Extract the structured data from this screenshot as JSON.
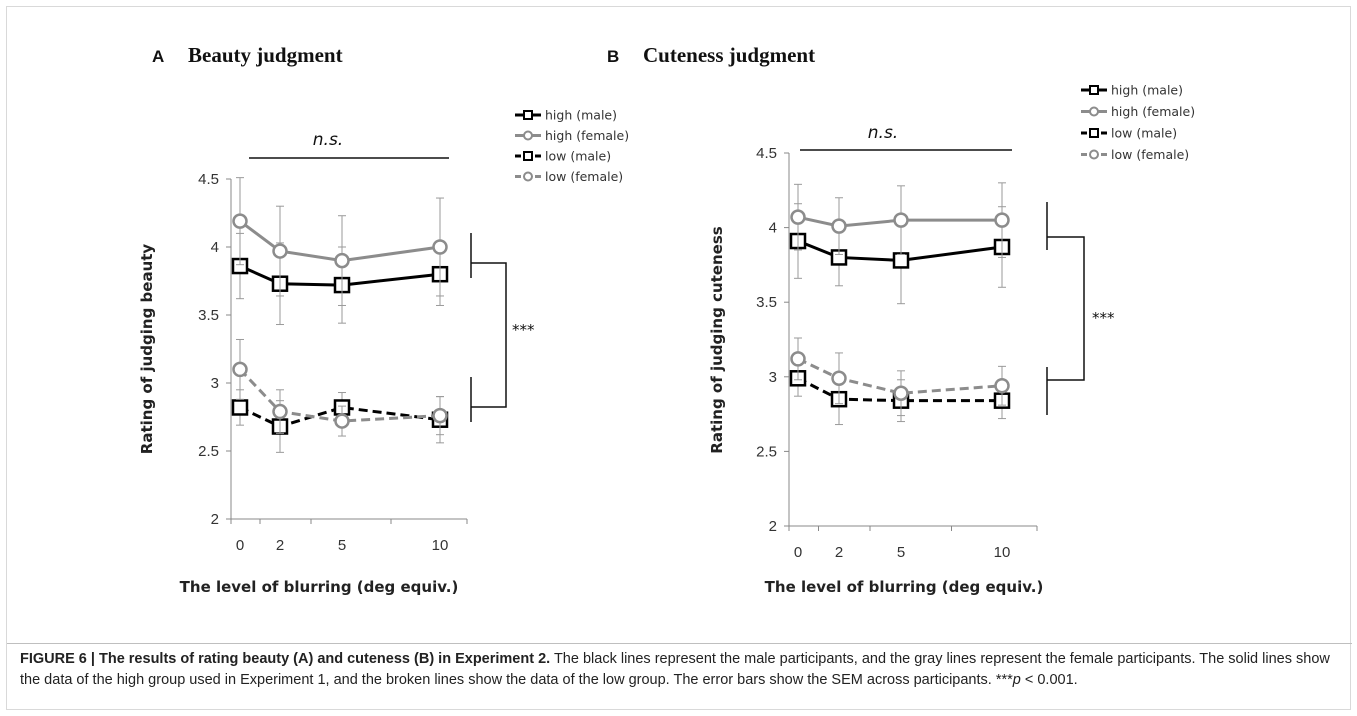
{
  "chart_data": [
    {
      "type": "line",
      "panel_letter": "A",
      "title": "Beauty judgment",
      "xlabel": "The level of blurring (deg equiv.)",
      "ylabel": "Rating of judging beauty",
      "x": [
        0,
        2,
        5,
        10
      ],
      "ylim": [
        2,
        4.5
      ],
      "yticks": [
        "2",
        "2.5",
        "3",
        "3.5",
        "4",
        "4.5"
      ],
      "xticks": [
        "0",
        "2",
        "5",
        "10"
      ],
      "grid": false,
      "legend_position": "top-right",
      "annotation_ns": "n.s.",
      "annotation_sig": "***",
      "series": [
        {
          "name": "high (male)",
          "values": [
            3.86,
            3.73,
            3.72,
            3.8
          ],
          "errors": [
            0.24,
            0.3,
            0.28,
            0.23
          ],
          "color": "#000000",
          "dash": false,
          "marker": "square"
        },
        {
          "name": "high (female)",
          "values": [
            4.19,
            3.97,
            3.9,
            4.0
          ],
          "errors": [
            0.32,
            0.33,
            0.33,
            0.36
          ],
          "color": "#8c8c8c",
          "dash": false,
          "marker": "circle"
        },
        {
          "name": "low (male)",
          "values": [
            2.82,
            2.68,
            2.82,
            2.73
          ],
          "errors": [
            0.13,
            0.19,
            0.11,
            0.17
          ],
          "color": "#000000",
          "dash": true,
          "marker": "square"
        },
        {
          "name": "low (female)",
          "values": [
            3.1,
            2.79,
            2.72,
            2.76
          ],
          "errors": [
            0.22,
            0.16,
            0.11,
            0.14
          ],
          "color": "#8c8c8c",
          "dash": true,
          "marker": "circle"
        }
      ]
    },
    {
      "type": "line",
      "panel_letter": "B",
      "title": "Cuteness judgment",
      "xlabel": "The level of blurring (deg equiv.)",
      "ylabel": "Rating of judging cuteness",
      "x": [
        0,
        2,
        5,
        10
      ],
      "ylim": [
        2,
        4.5
      ],
      "yticks": [
        "2",
        "2.5",
        "3",
        "3.5",
        "4",
        "4.5"
      ],
      "xticks": [
        "0",
        "2",
        "5",
        "10"
      ],
      "grid": false,
      "legend_position": "top-right",
      "annotation_ns": "n.s.",
      "annotation_sig": "***",
      "series": [
        {
          "name": "high (male)",
          "values": [
            3.91,
            3.8,
            3.78,
            3.87
          ],
          "errors": [
            0.25,
            0.19,
            0.29,
            0.27
          ],
          "color": "#000000",
          "dash": false,
          "marker": "square"
        },
        {
          "name": "high (female)",
          "values": [
            4.07,
            4.01,
            4.05,
            4.05
          ],
          "errors": [
            0.22,
            0.19,
            0.23,
            0.25
          ],
          "color": "#8c8c8c",
          "dash": false,
          "marker": "circle"
        },
        {
          "name": "low (male)",
          "values": [
            2.99,
            2.85,
            2.84,
            2.84
          ],
          "errors": [
            0.12,
            0.17,
            0.14,
            0.12
          ],
          "color": "#000000",
          "dash": true,
          "marker": "square"
        },
        {
          "name": "low (female)",
          "values": [
            3.12,
            2.99,
            2.89,
            2.94
          ],
          "errors": [
            0.14,
            0.17,
            0.15,
            0.13
          ],
          "color": "#8c8c8c",
          "dash": true,
          "marker": "circle"
        }
      ]
    }
  ],
  "caption": {
    "lead": "FIGURE 6 | The results of rating beauty (A) and cuteness (B) in Experiment 2.",
    "body": " The black lines represent the male participants, and the gray lines represent the female participants. The solid lines show the data of the high group used in Experiment 1, and the broken lines show the data of the low group. The error bars show the SEM across participants. ***",
    "p_symbol": "p",
    "p_tail": " < 0.001."
  }
}
